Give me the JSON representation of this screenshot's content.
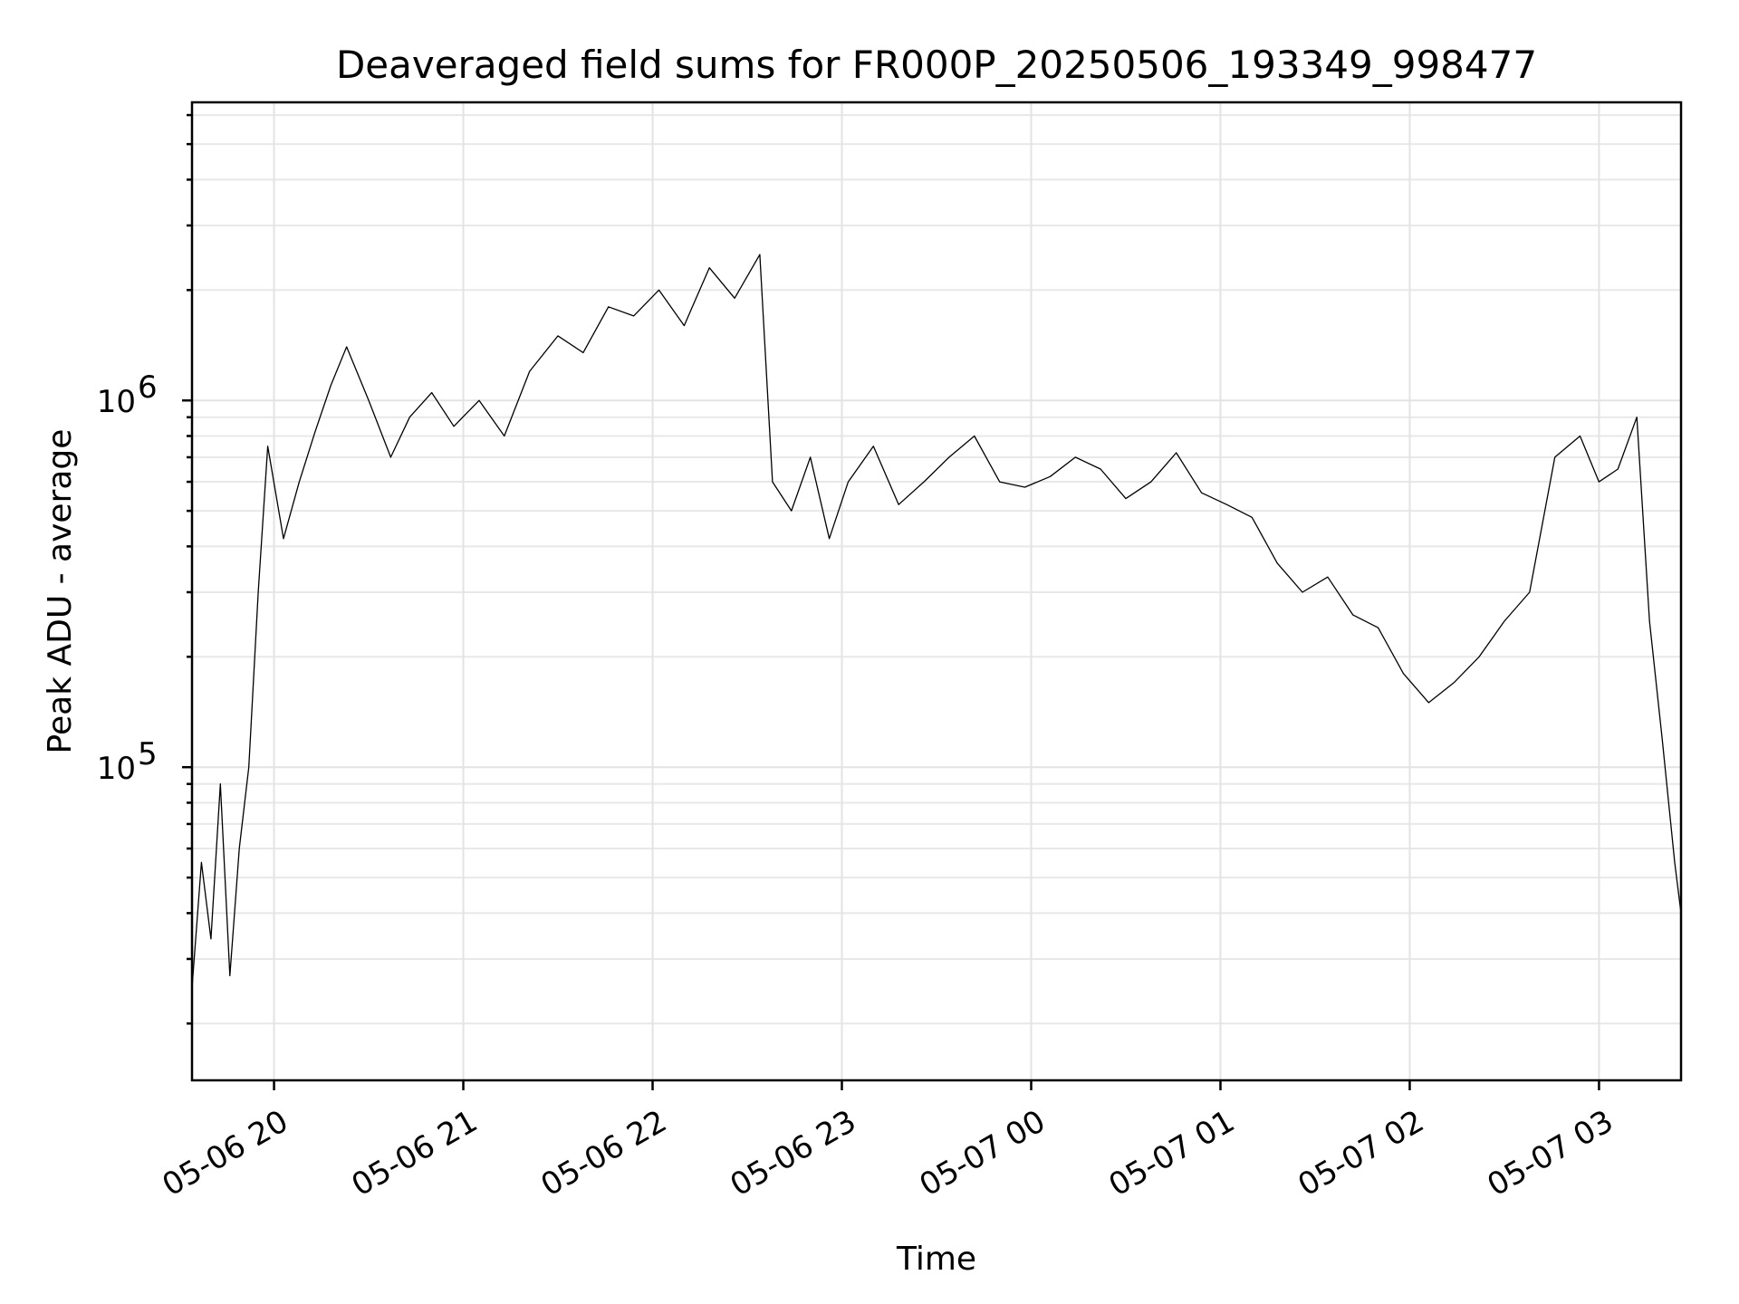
{
  "chart_data": {
    "type": "line",
    "title": "Deaveraged field sums for FR000P_20250506_193349_998477",
    "xlabel": "Time",
    "ylabel": "Peak ADU - average",
    "yscale": "log",
    "ylim": [
      14000,
      6500000
    ],
    "xlim": [
      "2025-05-06 19:34",
      "2025-05-07 03:26"
    ],
    "grid": "both",
    "color": "#000000",
    "x_ticks": [
      {
        "time": "2025-05-06 20:00",
        "label": "05-06 20"
      },
      {
        "time": "2025-05-06 21:00",
        "label": "05-06 21"
      },
      {
        "time": "2025-05-06 22:00",
        "label": "05-06 22"
      },
      {
        "time": "2025-05-06 23:00",
        "label": "05-06 23"
      },
      {
        "time": "2025-05-07 00:00",
        "label": "05-07 00"
      },
      {
        "time": "2025-05-07 01:00",
        "label": "05-07 01"
      },
      {
        "time": "2025-05-07 02:00",
        "label": "05-07 02"
      },
      {
        "time": "2025-05-07 03:00",
        "label": "05-07 03"
      }
    ],
    "y_ticks": [
      {
        "value": 100000,
        "base": "10",
        "exp": "5"
      },
      {
        "value": 1000000,
        "base": "10",
        "exp": "6"
      }
    ],
    "series": [
      {
        "x": [
          "2025-05-06 19:34",
          "2025-05-06 19:37",
          "2025-05-06 19:40",
          "2025-05-06 19:43",
          "2025-05-06 19:46",
          "2025-05-06 19:49",
          "2025-05-06 19:52",
          "2025-05-06 19:55",
          "2025-05-06 19:58",
          "2025-05-06 20:03",
          "2025-05-06 20:08",
          "2025-05-06 20:13",
          "2025-05-06 20:18",
          "2025-05-06 20:23",
          "2025-05-06 20:30",
          "2025-05-06 20:37",
          "2025-05-06 20:43",
          "2025-05-06 20:50",
          "2025-05-06 20:57",
          "2025-05-06 21:05",
          "2025-05-06 21:13",
          "2025-05-06 21:21",
          "2025-05-06 21:30",
          "2025-05-06 21:38",
          "2025-05-06 21:46",
          "2025-05-06 21:54",
          "2025-05-06 22:02",
          "2025-05-06 22:10",
          "2025-05-06 22:18",
          "2025-05-06 22:26",
          "2025-05-06 22:34",
          "2025-05-06 22:38",
          "2025-05-06 22:44",
          "2025-05-06 22:50",
          "2025-05-06 22:56",
          "2025-05-06 23:02",
          "2025-05-06 23:10",
          "2025-05-06 23:18",
          "2025-05-06 23:26",
          "2025-05-06 23:34",
          "2025-05-06 23:42",
          "2025-05-06 23:50",
          "2025-05-06 23:58",
          "2025-05-07 00:06",
          "2025-05-07 00:14",
          "2025-05-07 00:22",
          "2025-05-07 00:30",
          "2025-05-07 00:38",
          "2025-05-07 00:46",
          "2025-05-07 00:54",
          "2025-05-07 01:02",
          "2025-05-07 01:10",
          "2025-05-07 01:18",
          "2025-05-07 01:26",
          "2025-05-07 01:34",
          "2025-05-07 01:42",
          "2025-05-07 01:50",
          "2025-05-07 01:58",
          "2025-05-07 02:06",
          "2025-05-07 02:14",
          "2025-05-07 02:22",
          "2025-05-07 02:30",
          "2025-05-07 02:38",
          "2025-05-07 02:46",
          "2025-05-07 02:54",
          "2025-05-07 03:00",
          "2025-05-07 03:06",
          "2025-05-07 03:12",
          "2025-05-07 03:16",
          "2025-05-07 03:20",
          "2025-05-07 03:24",
          "2025-05-07 03:26"
        ],
        "values": [
          25000,
          55000,
          34000,
          90000,
          27000,
          60000,
          100000,
          300000,
          750000,
          420000,
          600000,
          820000,
          1100000,
          1400000,
          1000000,
          700000,
          900000,
          1050000,
          850000,
          1000000,
          800000,
          1200000,
          1500000,
          1350000,
          1800000,
          1700000,
          2000000,
          1600000,
          2300000,
          1900000,
          2500000,
          600000,
          500000,
          700000,
          420000,
          600000,
          750000,
          520000,
          600000,
          700000,
          800000,
          600000,
          580000,
          620000,
          700000,
          650000,
          540000,
          600000,
          720000,
          560000,
          520000,
          480000,
          360000,
          300000,
          330000,
          260000,
          240000,
          180000,
          150000,
          170000,
          200000,
          250000,
          300000,
          700000,
          800000,
          600000,
          650000,
          900000,
          250000,
          120000,
          55000,
          40000
        ]
      }
    ]
  }
}
